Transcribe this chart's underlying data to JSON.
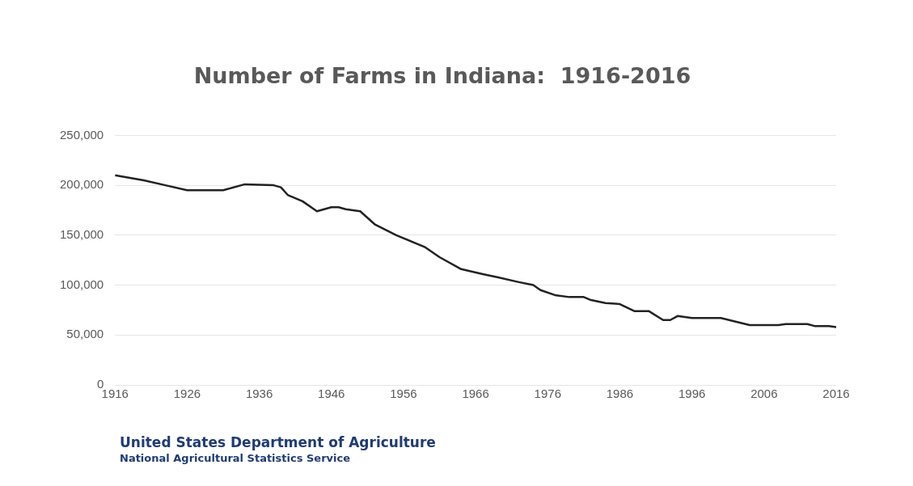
{
  "chart_data": {
    "type": "line",
    "title": "Number of Farms in Indiana:  1916-2016",
    "x": [
      1916,
      1920,
      1923,
      1926,
      1931,
      1934,
      1938,
      1939,
      1940,
      1942,
      1944,
      1946,
      1947,
      1948,
      1950,
      1952,
      1955,
      1959,
      1961,
      1964,
      1967,
      1969,
      1972,
      1974,
      1975,
      1977,
      1979,
      1981,
      1982,
      1984,
      1986,
      1988,
      1990,
      1992,
      1993,
      1994,
      1996,
      2000,
      2004,
      2008,
      2009,
      2012,
      2013,
      2015,
      2016
    ],
    "series": [
      {
        "color": "#222222",
        "values": [
          210000,
          205000,
          200000,
          195000,
          195000,
          201000,
          200000,
          198000,
          190000,
          184000,
          174000,
          178000,
          178000,
          176000,
          174000,
          161000,
          150000,
          138000,
          128000,
          116000,
          111000,
          108000,
          103000,
          100000,
          95000,
          90000,
          88000,
          88000,
          85000,
          82000,
          81000,
          74000,
          74000,
          65000,
          65000,
          69000,
          67000,
          67000,
          60000,
          60000,
          61000,
          61000,
          59000,
          59000,
          58000
        ]
      }
    ],
    "xlim": [
      1916,
      2016
    ],
    "xticks": [
      1916,
      1926,
      1936,
      1946,
      1956,
      1966,
      1976,
      1986,
      1996,
      2006,
      2016
    ],
    "ylim": [
      0,
      250000
    ],
    "yticks": [
      {
        "value": 0,
        "label": "0"
      },
      {
        "value": 50000,
        "label": "50,000"
      },
      {
        "value": 100000,
        "label": "100,000"
      },
      {
        "value": 150000,
        "label": "150,000"
      },
      {
        "value": 200000,
        "label": "200,000"
      },
      {
        "value": 250000,
        "label": "250,000"
      }
    ],
    "grid": "y",
    "legend": false,
    "marker": "none",
    "line_style": "solid",
    "annotations": [
      "United States Department of Agriculture",
      "National Agricultural Statistics Service"
    ]
  }
}
